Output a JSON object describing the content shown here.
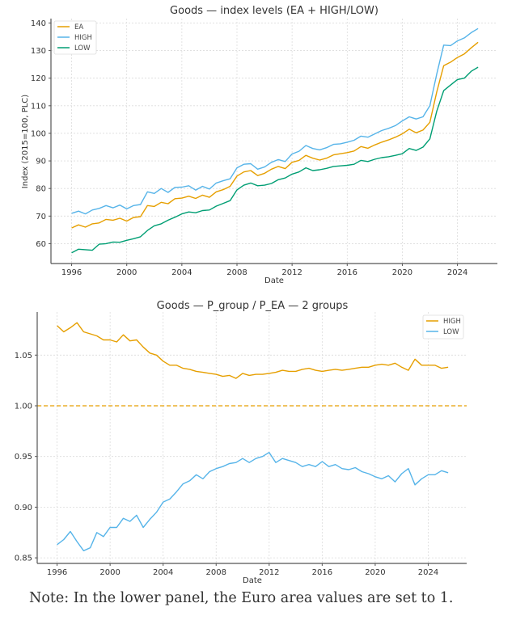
{
  "chart_data": [
    {
      "type": "line",
      "title": "Goods — index levels (EA + HIGH/LOW)",
      "xlabel": "Date",
      "ylabel": "Index (2015=100, PLC)",
      "xlim": [
        1994.5,
        2026.9
      ],
      "ylim": [
        52.8,
        141.6
      ],
      "xticks": [
        1996,
        2000,
        2004,
        2008,
        2012,
        2016,
        2020,
        2024
      ],
      "yticks": [
        60,
        70,
        80,
        90,
        100,
        110,
        120,
        130,
        140
      ],
      "grid": true,
      "legend_position": "top-left",
      "x": [
        1996.0,
        1996.5,
        1997.0,
        1997.5,
        1998.0,
        1998.5,
        1999.0,
        1999.5,
        2000.0,
        2000.5,
        2001.0,
        2001.5,
        2002.0,
        2002.5,
        2003.0,
        2003.5,
        2004.0,
        2004.5,
        2005.0,
        2005.5,
        2006.0,
        2006.5,
        2007.0,
        2007.5,
        2008.0,
        2008.5,
        2009.0,
        2009.5,
        2010.0,
        2010.5,
        2011.0,
        2011.5,
        2012.0,
        2012.5,
        2013.0,
        2013.5,
        2014.0,
        2014.5,
        2015.0,
        2015.5,
        2016.0,
        2016.5,
        2017.0,
        2017.5,
        2018.0,
        2018.5,
        2019.0,
        2019.5,
        2020.0,
        2020.5,
        2021.0,
        2021.5,
        2022.0,
        2022.5,
        2023.0,
        2023.5,
        2024.0,
        2024.5,
        2025.0,
        2025.5
      ],
      "series": [
        {
          "name": "EA",
          "color": "#E69F00",
          "values": [
            65.7,
            66.8,
            66.0,
            67.2,
            67.5,
            68.8,
            68.5,
            69.2,
            68.2,
            69.5,
            69.8,
            73.8,
            73.5,
            75.0,
            74.5,
            76.3,
            76.5,
            77.2,
            76.4,
            77.6,
            76.8,
            78.8,
            79.6,
            80.8,
            84.5,
            86.0,
            86.5,
            84.7,
            85.5,
            87.0,
            88.0,
            87.2,
            89.5,
            90.2,
            92.0,
            91.0,
            90.3,
            91.0,
            92.2,
            92.6,
            93.0,
            93.6,
            95.2,
            94.6,
            95.8,
            96.8,
            97.6,
            98.6,
            99.8,
            101.5,
            100.2,
            101.2,
            104.0,
            115.0,
            124.5,
            125.8,
            127.5,
            128.8,
            131.0,
            133.0
          ]
        },
        {
          "name": "HIGH",
          "color": "#56B4E9",
          "values": [
            71.0,
            71.8,
            70.8,
            72.2,
            72.8,
            73.8,
            73.0,
            74.0,
            72.6,
            73.8,
            74.2,
            78.8,
            78.2,
            80.0,
            78.6,
            80.4,
            80.5,
            81.0,
            79.4,
            80.8,
            79.8,
            82.0,
            82.8,
            83.5,
            87.5,
            88.8,
            89.0,
            87.0,
            87.8,
            89.5,
            90.5,
            89.8,
            92.5,
            93.5,
            95.6,
            94.5,
            94.0,
            94.8,
            96.0,
            96.2,
            96.8,
            97.5,
            99.0,
            98.6,
            99.8,
            101.0,
            101.8,
            102.8,
            104.5,
            106.0,
            105.2,
            106.0,
            110.0,
            121.5,
            132.0,
            131.8,
            133.5,
            134.6,
            136.5,
            138.0
          ]
        },
        {
          "name": "LOW",
          "color": "#009E73",
          "values": [
            56.7,
            58.0,
            57.8,
            57.6,
            59.8,
            60.0,
            60.6,
            60.5,
            61.2,
            61.8,
            62.5,
            64.8,
            66.5,
            67.2,
            68.5,
            69.6,
            70.8,
            71.5,
            71.2,
            72.0,
            72.2,
            73.6,
            74.6,
            75.6,
            79.5,
            81.2,
            82.0,
            81.0,
            81.2,
            81.8,
            83.2,
            83.8,
            85.2,
            86.0,
            87.5,
            86.5,
            86.8,
            87.3,
            88.0,
            88.2,
            88.4,
            88.8,
            90.2,
            89.8,
            90.6,
            91.2,
            91.5,
            92.0,
            92.6,
            94.5,
            93.8,
            95.0,
            98.0,
            108.0,
            115.5,
            117.5,
            119.5,
            120.0,
            122.5,
            124.0
          ]
        }
      ]
    },
    {
      "type": "line",
      "title": "Goods — P_group / P_EA — 2 groups",
      "xlabel": "Date",
      "ylabel": "",
      "xlim": [
        1994.5,
        2026.9
      ],
      "ylim": [
        0.8445,
        1.0925
      ],
      "xticks": [
        1996,
        2000,
        2004,
        2008,
        2012,
        2016,
        2020,
        2024
      ],
      "yticks": [
        0.85,
        0.9,
        0.95,
        1.0,
        1.05
      ],
      "grid": true,
      "legend_position": "top-right",
      "reference_line": {
        "y": 1.0,
        "style": "dashed",
        "color": "#E69F00"
      },
      "x": [
        1996.0,
        1996.5,
        1997.0,
        1997.5,
        1998.0,
        1998.5,
        1999.0,
        1999.5,
        2000.0,
        2000.5,
        2001.0,
        2001.5,
        2002.0,
        2002.5,
        2003.0,
        2003.5,
        2004.0,
        2004.5,
        2005.0,
        2005.5,
        2006.0,
        2006.5,
        2007.0,
        2007.5,
        2008.0,
        2008.5,
        2009.0,
        2009.5,
        2010.0,
        2010.5,
        2011.0,
        2011.5,
        2012.0,
        2012.5,
        2013.0,
        2013.5,
        2014.0,
        2014.5,
        2015.0,
        2015.5,
        2016.0,
        2016.5,
        2017.0,
        2017.5,
        2018.0,
        2018.5,
        2019.0,
        2019.5,
        2020.0,
        2020.5,
        2021.0,
        2021.5,
        2022.0,
        2022.5,
        2023.0,
        2023.5,
        2024.0,
        2024.5,
        2025.0,
        2025.5
      ],
      "series": [
        {
          "name": "HIGH",
          "color": "#E69F00",
          "values": [
            1.079,
            1.073,
            1.077,
            1.082,
            1.073,
            1.071,
            1.069,
            1.065,
            1.065,
            1.063,
            1.07,
            1.064,
            1.065,
            1.058,
            1.052,
            1.05,
            1.044,
            1.04,
            1.04,
            1.037,
            1.036,
            1.034,
            1.033,
            1.032,
            1.031,
            1.029,
            1.03,
            1.027,
            1.032,
            1.03,
            1.031,
            1.031,
            1.032,
            1.033,
            1.035,
            1.034,
            1.034,
            1.036,
            1.037,
            1.035,
            1.034,
            1.035,
            1.036,
            1.035,
            1.036,
            1.037,
            1.038,
            1.038,
            1.04,
            1.041,
            1.04,
            1.042,
            1.038,
            1.035,
            1.046,
            1.04,
            1.04,
            1.04,
            1.037,
            1.038
          ]
        },
        {
          "name": "LOW",
          "color": "#56B4E9",
          "values": [
            0.863,
            0.868,
            0.876,
            0.866,
            0.857,
            0.86,
            0.875,
            0.871,
            0.88,
            0.88,
            0.889,
            0.886,
            0.892,
            0.88,
            0.888,
            0.895,
            0.905,
            0.908,
            0.915,
            0.923,
            0.926,
            0.932,
            0.928,
            0.935,
            0.938,
            0.94,
            0.943,
            0.944,
            0.948,
            0.944,
            0.948,
            0.95,
            0.954,
            0.944,
            0.948,
            0.946,
            0.944,
            0.94,
            0.942,
            0.94,
            0.945,
            0.94,
            0.942,
            0.938,
            0.937,
            0.939,
            0.935,
            0.933,
            0.93,
            0.928,
            0.931,
            0.925,
            0.933,
            0.938,
            0.922,
            0.928,
            0.932,
            0.932,
            0.936,
            0.934
          ]
        }
      ]
    }
  ],
  "note": "Note: In the lower panel, the Euro area values are set to 1."
}
